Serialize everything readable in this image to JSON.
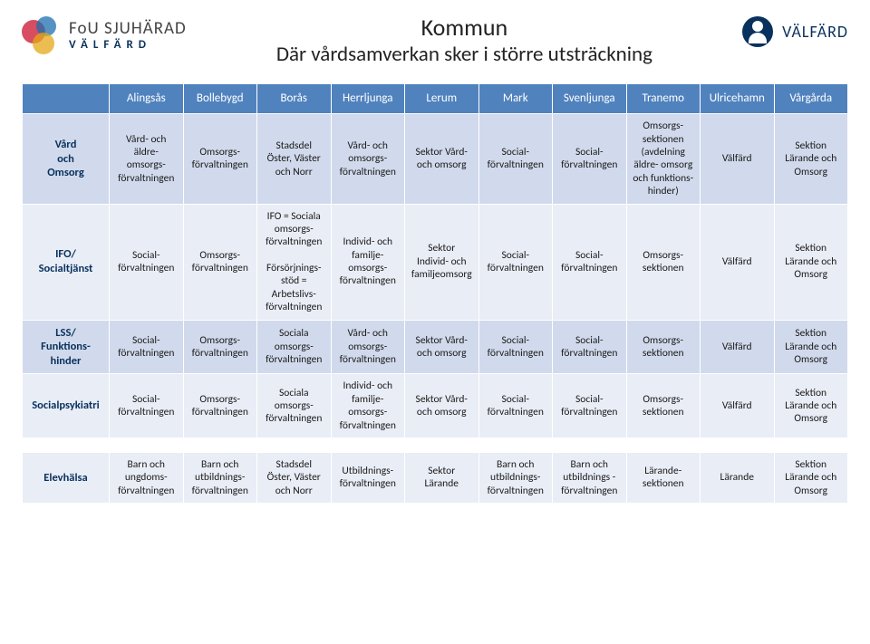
{
  "logo_left": {
    "top": "FoU SJUHÄRAD",
    "bottom": "VÄLFÄRD"
  },
  "logo_right": {
    "text": "VÄLFÄRD"
  },
  "title": {
    "line1": "Kommun",
    "line2": "Där vårdsamverkan sker i större utsträckning"
  },
  "table": {
    "columns": [
      "Alingsås",
      "Bollebygd",
      "Borås",
      "Herrljunga",
      "Lerum",
      "Mark",
      "Svenljunga",
      "Tranemo",
      "Ulricehamn",
      "Vårgårda"
    ],
    "rows": [
      {
        "label": "Vård\noch\nOmsorg",
        "cells": [
          "Vård- och äldre-\nomsorgs-\nförvaltningen",
          "Omsorgs-\nförvaltningen",
          "Stadsdel\nÖster, Väster\noch Norr",
          "Vård- och\nomsorgs-\nförvaltningen",
          "Sektor Vård-\noch omsorg",
          "Social-\nförvaltningen",
          "Social-\nförvaltningen",
          "Omsorgs-\nsektionen\n(avdelning\näldre- omsorg\noch funktions-\nhinder)",
          "Välfärd",
          "Sektion\nLärande och\nOmsorg"
        ]
      },
      {
        "label": "IFO/\nSocialtjänst",
        "cells": [
          "Social-\nförvaltningen",
          "Omsorgs-\nförvaltningen",
          "IFO = Sociala\nomsorgs-\nförvaltningen\n\nFörsörjnings-\nstöd =\nArbetslivs-\nförvaltningen",
          "Individ- och\nfamilje-\nomsorgs-\nförvaltningen",
          "Sektor\nIndivid- och\nfamiljeomsorg",
          "Social-\nförvaltningen",
          "Social-\nförvaltningen",
          "Omsorgs-\nsektionen",
          "Välfärd",
          "Sektion\nLärande och\nOmsorg"
        ]
      },
      {
        "label": "LSS/\nFunktions-\nhinder",
        "cells": [
          "Social-\nförvaltningen",
          "Omsorgs-\nförvaltningen",
          "Sociala\nomsorgs-\nförvaltningen",
          "Vård- och\nomsorgs-\nförvaltningen",
          "Sektor Vård-\noch omsorg",
          "Social-\nförvaltningen",
          "Social-\nförvaltningen",
          "Omsorgs-\nsektionen",
          "Välfärd",
          "Sektion\nLärande och\nOmsorg"
        ]
      },
      {
        "label": "Socialpsykiatri",
        "cells": [
          "Social-\nförvaltningen",
          "Omsorgs-\nförvaltningen",
          "Sociala\nomsorgs-\nförvaltningen",
          "Individ- och\nfamilje-\nomsorgs-\nförvaltningen",
          "Sektor Vård-\noch omsorg",
          "Social-\nförvaltningen",
          "Social-\nförvaltningen",
          "Omsorgs-\nsektionen",
          "Välfärd",
          "Sektion\nLärande och\nOmsorg"
        ]
      },
      {
        "label": "Elevhälsa",
        "cells": [
          "Barn och\nungdoms-\nförvaltningen",
          "Barn och\nutbildnings-\nförvaltningen",
          "Stadsdel\nÖster, Väster\noch Norr",
          "Utbildnings-\nförvaltningen",
          "Sektor\nLärande",
          "Barn och\nutbildnings-\nförvaltningen",
          "Barn och\nutbildnings -\nförvaltningen",
          "Lärande-\nsektionen",
          "Lärande",
          "Sektion\nLärande och\nOmsorg"
        ]
      }
    ],
    "spacer_before_last": true
  },
  "colors": {
    "header_bg": "#5082be",
    "row_odd": "#d1daec",
    "row_even": "#e9edf6",
    "rowlabel_color": "#08315d"
  }
}
